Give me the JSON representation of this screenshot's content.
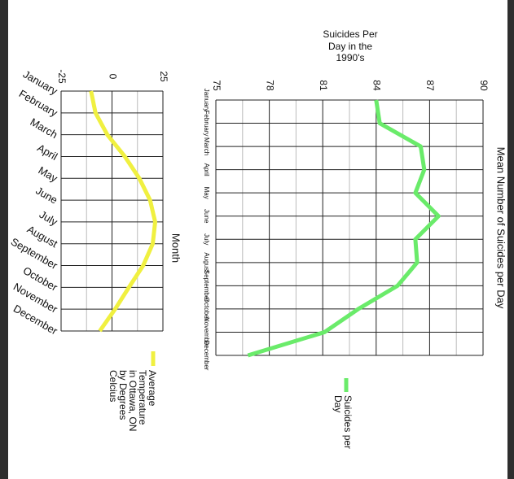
{
  "chart_data": [
    {
      "type": "line",
      "orientation": "vertical",
      "title": "Suicides Per Day in the 1990's",
      "y_label": "Mean Number of Suicides per Day",
      "categories": [
        "January",
        "February",
        "March",
        "April",
        "May",
        "June",
        "July",
        "August",
        "September",
        "October",
        "November",
        "December"
      ],
      "series": [
        {
          "name": "Suicides per Day",
          "color": "#6aeb6a",
          "values": [
            84,
            84.2,
            86.5,
            86.7,
            86.2,
            87.5,
            86.2,
            86.3,
            85.2,
            83.0,
            81.1,
            76.8
          ]
        }
      ],
      "ylim": [
        75,
        90
      ],
      "yticks": [
        75,
        78,
        81,
        84,
        87,
        90
      ],
      "grid": true
    },
    {
      "type": "line",
      "orientation": "vertical",
      "x_label": "Month",
      "categories": [
        "January",
        "February",
        "March",
        "April",
        "May",
        "June",
        "July",
        "August",
        "September",
        "October",
        "November",
        "December"
      ],
      "series": [
        {
          "name": "Average Temperature in Ottawa, ON by Degrees Celcius",
          "color": "#f0f040",
          "values": [
            -10.3,
            -8.1,
            -2.3,
            6.3,
            13.4,
            18.7,
            21.2,
            20.0,
            15.3,
            8.3,
            1.5,
            -6.0
          ]
        }
      ],
      "ylim": [
        -25,
        25
      ],
      "yticks": [
        -25,
        0,
        25
      ],
      "grid": true
    }
  ]
}
